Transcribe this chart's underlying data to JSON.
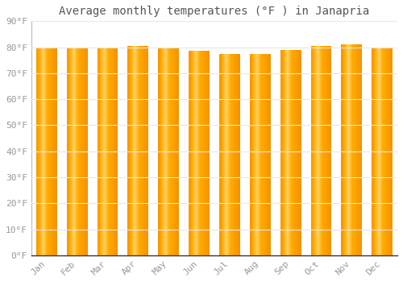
{
  "title": "Average monthly temperatures (°F ) in Janapria",
  "months": [
    "Jan",
    "Feb",
    "Mar",
    "Apr",
    "May",
    "Jun",
    "Jul",
    "Aug",
    "Sep",
    "Oct",
    "Nov",
    "Dec"
  ],
  "temperatures": [
    80,
    80,
    79.5,
    80.5,
    79.5,
    78.5,
    77.5,
    77.5,
    79,
    80.5,
    81,
    80
  ],
  "ylim": [
    0,
    90
  ],
  "yticks": [
    0,
    10,
    20,
    30,
    40,
    50,
    60,
    70,
    80,
    90
  ],
  "bar_color_center": "#FFAA00",
  "bar_color_edge": "#F59200",
  "bar_color_highlight": "#FFD060",
  "background_color": "#FFFFFF",
  "plot_bg_color": "#FFFFFF",
  "grid_color": "#E8E8E8",
  "title_fontsize": 10,
  "tick_fontsize": 8,
  "title_color": "#555555",
  "tick_color": "#999999"
}
